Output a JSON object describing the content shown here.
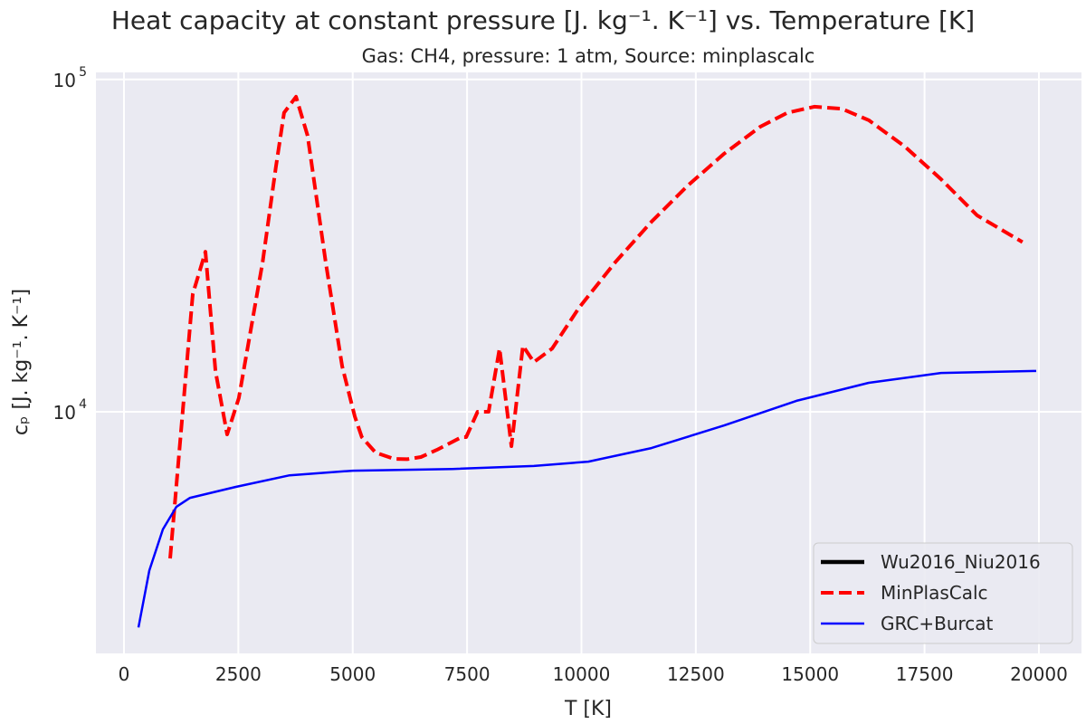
{
  "chart_data": {
    "type": "line",
    "title": "Heat capacity at constant pressure [J. kg⁻¹. K⁻¹] vs. Temperature [K]",
    "subtitle": "Gas: CH4, pressure: 1 atm, Source: minplascalc",
    "xlabel": "T [K]",
    "ylabel": "cₚ [J. kg⁻¹. K⁻¹]",
    "xlim": [
      -613,
      20930
    ],
    "ylim": [
      1875,
      105000
    ],
    "yscale": "log",
    "grid": true,
    "legend_placement": "lower-right",
    "background": "#EAEAF2",
    "x_ticks": [
      0,
      2500,
      5000,
      7500,
      10000,
      12500,
      15000,
      17500,
      20000
    ],
    "x_tick_labels": [
      "0",
      "2500",
      "5000",
      "7500",
      "10000",
      "12500",
      "15000",
      "17500",
      "20000"
    ],
    "y_ticks": [
      10000,
      100000
    ],
    "y_tick_labels": [
      {
        "base": "10",
        "exp": "4"
      },
      {
        "base": "10",
        "exp": "5"
      }
    ],
    "series": [
      {
        "name": "Wu2016_Niu2016",
        "color": "#000000",
        "style": "solid-thick",
        "x": [],
        "y": []
      },
      {
        "name": "MinPlasCalc",
        "color": "#FF0000",
        "style": "dashed",
        "x": [
          1009,
          1503,
          1780,
          2000,
          2255,
          2510,
          3030,
          3320,
          3500,
          3760,
          4015,
          4410,
          4770,
          5045,
          5200,
          5500,
          5900,
          6190,
          6490,
          6840,
          7380,
          7480,
          7730,
          7970,
          8210,
          8470,
          8720,
          8960,
          9360,
          9950,
          10740,
          11530,
          12320,
          13120,
          13910,
          14500,
          15090,
          15690,
          16280,
          17070,
          17860,
          18650,
          19640
        ],
        "y": [
          3620,
          22600,
          30300,
          13260,
          8550,
          11000,
          28200,
          54400,
          79400,
          88700,
          67700,
          28200,
          13700,
          9690,
          8390,
          7540,
          7220,
          7200,
          7310,
          7680,
          8390,
          8390,
          10000,
          10000,
          15500,
          7880,
          15800,
          14100,
          15500,
          20600,
          28200,
          37300,
          47900,
          59800,
          72100,
          79400,
          82800,
          81600,
          75400,
          62800,
          50100,
          39000,
          32400
        ]
      },
      {
        "name": "GRC+Burcat",
        "color": "#0000FF",
        "style": "solid",
        "x": [
          316,
          554,
          850,
          1147,
          1444,
          2433,
          3620,
          5005,
          7180,
          8960,
          10150,
          11530,
          13120,
          14700,
          16280,
          17860,
          19940
        ],
        "y": [
          2245,
          3330,
          4430,
          5180,
          5510,
          5940,
          6440,
          6650,
          6730,
          6870,
          7080,
          7780,
          9100,
          10790,
          12220,
          13090,
          13270
        ]
      }
    ]
  }
}
